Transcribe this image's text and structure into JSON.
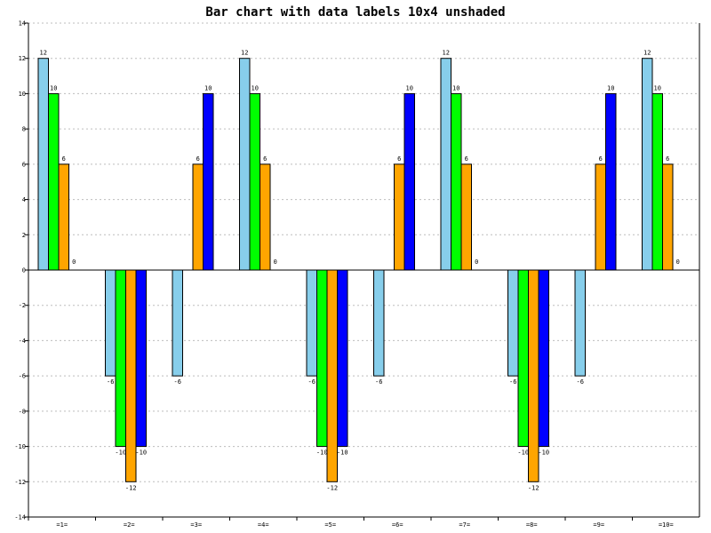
{
  "chart_data": {
    "type": "bar",
    "title": "Bar chart with data labels 10x4 unshaded",
    "xlabel": "",
    "ylabel": "",
    "categories": [
      "=1=",
      "=2=",
      "=3=",
      "=4=",
      "=5=",
      "=6=",
      "=7=",
      "=8=",
      "=9=",
      "=10="
    ],
    "ylim": [
      -14,
      14
    ],
    "yticks": [
      -14,
      -12,
      -10,
      -8,
      -6,
      -4,
      -2,
      0,
      2,
      4,
      6,
      8,
      10,
      12,
      14
    ],
    "grid": true,
    "colors": [
      "#87ceeb",
      "#00ff00",
      "#ffa500",
      "#0000ff"
    ],
    "series": [
      {
        "values": [
          12,
          -6,
          -6,
          12,
          -6,
          -6,
          12,
          -6,
          -6,
          12
        ]
      },
      {
        "values": [
          10,
          -10,
          null,
          10,
          -10,
          null,
          10,
          -10,
          null,
          10
        ]
      },
      {
        "values": [
          6,
          -12,
          6,
          6,
          -12,
          6,
          6,
          -12,
          6,
          6
        ]
      },
      {
        "values": [
          0,
          -10,
          10,
          0,
          -10,
          10,
          0,
          -10,
          10,
          0
        ]
      }
    ]
  }
}
